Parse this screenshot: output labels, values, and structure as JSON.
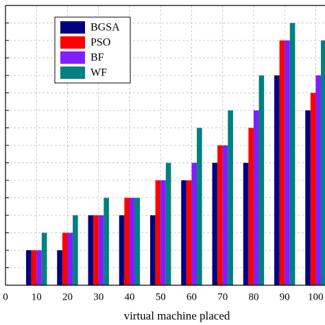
{
  "chart_data": {
    "type": "bar",
    "x_label": "virtual machine placed",
    "x": [
      10,
      20,
      30,
      40,
      50,
      60,
      70,
      80,
      90,
      100
    ],
    "series": [
      {
        "name": "BGSA",
        "color": "#000080",
        "values": [
          2,
          2,
          4,
          4,
          4,
          6,
          7,
          7,
          12,
          10
        ]
      },
      {
        "name": "PSO",
        "color": "#ff0000",
        "values": [
          2,
          3,
          4,
          5,
          6,
          6,
          8,
          9,
          14,
          11
        ]
      },
      {
        "name": "BF",
        "color": "#7f1fff",
        "values": [
          2,
          3,
          4,
          5,
          6,
          7,
          8,
          10,
          14,
          12
        ]
      },
      {
        "name": "WF",
        "color": "#008080",
        "values": [
          3,
          4,
          5,
          5,
          7,
          9,
          10,
          12,
          15,
          14
        ]
      }
    ],
    "xlim": [
      0,
      103
    ],
    "xticks": [
      0,
      10,
      20,
      30,
      40,
      50,
      60,
      70,
      80,
      90,
      100
    ],
    "ylim": [
      0,
      16
    ],
    "yticks": [
      0,
      1,
      2,
      3,
      4,
      5,
      6,
      7,
      8,
      9,
      10,
      11,
      12,
      13,
      14,
      15,
      16
    ],
    "grid": true,
    "legend": "upper left"
  }
}
